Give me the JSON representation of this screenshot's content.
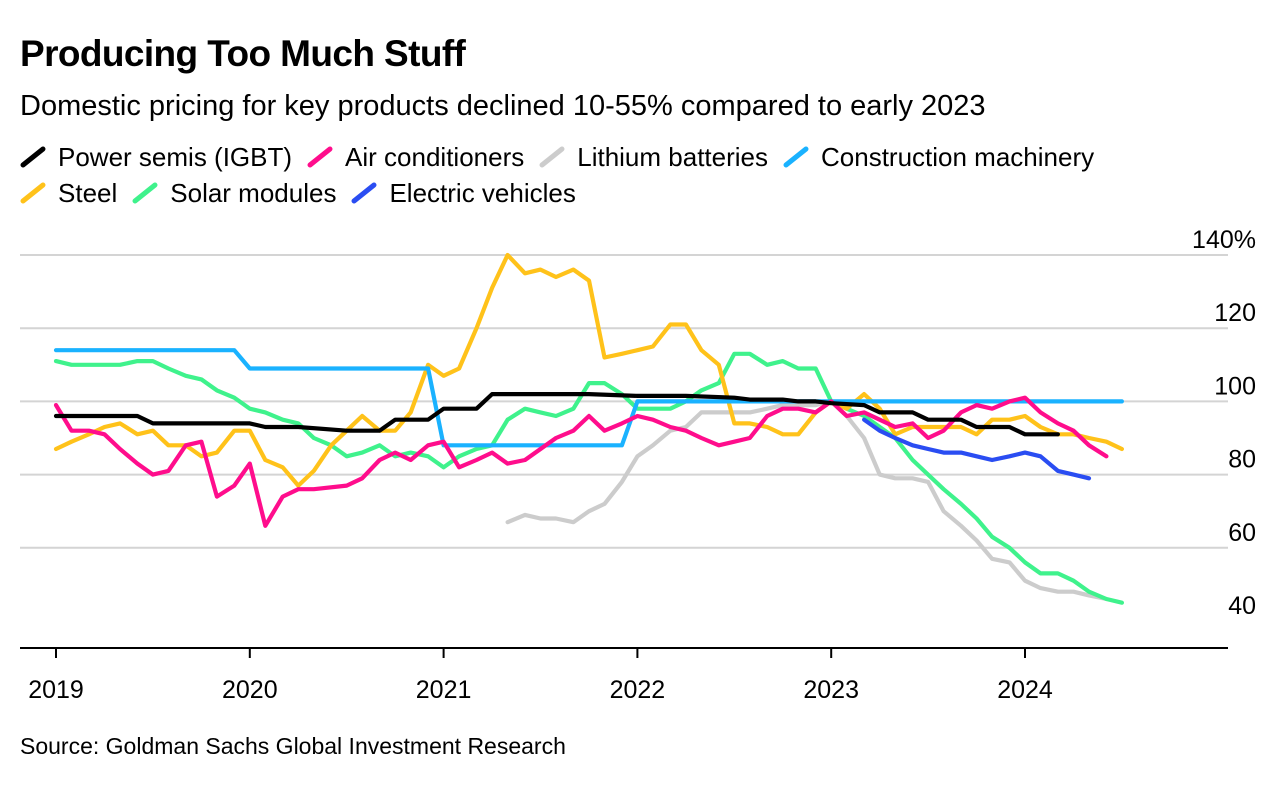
{
  "title": "Producing Too Much Stuff",
  "subtitle": "Domestic pricing for key products declined 10-55% compared to early 2023",
  "source": "Source: Goldman Sachs Global Investment Research",
  "chart_data": {
    "type": "line",
    "title": "Producing Too Much Stuff",
    "subtitle": "Domestic pricing for key products declined 10-55% compared to early 2023",
    "xlabel": "",
    "ylabel": "",
    "xlim": [
      2019,
      2025
    ],
    "ylim": [
      38,
      140
    ],
    "x_ticks": [
      2019,
      2020,
      2021,
      2022,
      2023,
      2024
    ],
    "x_tick_labels": [
      "2019",
      "2020",
      "2021",
      "2022",
      "2023",
      "2024"
    ],
    "y_ticks": [
      40,
      60,
      80,
      100,
      120,
      140
    ],
    "y_tick_labels": [
      "40",
      "60",
      "80",
      "100",
      "120",
      "140%"
    ],
    "grid": "horizontal",
    "legend": "top",
    "series": [
      {
        "name": "Power semis (IGBT)",
        "color": "#000000",
        "points": [
          [
            2019.0,
            96
          ],
          [
            2019.42,
            96
          ],
          [
            2019.5,
            94
          ],
          [
            2020.0,
            94
          ],
          [
            2020.08,
            93
          ],
          [
            2020.25,
            93
          ],
          [
            2020.5,
            92
          ],
          [
            2020.58,
            92
          ],
          [
            2020.67,
            92
          ],
          [
            2020.75,
            95
          ],
          [
            2020.92,
            95
          ],
          [
            2021.0,
            98
          ],
          [
            2021.17,
            98
          ],
          [
            2021.25,
            102
          ],
          [
            2021.75,
            102
          ],
          [
            2022.0,
            101.5
          ],
          [
            2022.25,
            101.5
          ],
          [
            2022.5,
            101
          ],
          [
            2022.58,
            100.5
          ],
          [
            2022.75,
            100.5
          ],
          [
            2022.83,
            100
          ],
          [
            2022.92,
            100
          ],
          [
            2023.0,
            99.5
          ],
          [
            2023.17,
            99
          ],
          [
            2023.25,
            97
          ],
          [
            2023.42,
            97
          ],
          [
            2023.5,
            95
          ],
          [
            2023.67,
            95
          ],
          [
            2023.75,
            93
          ],
          [
            2023.92,
            93
          ],
          [
            2024.0,
            91
          ],
          [
            2024.17,
            91
          ]
        ]
      },
      {
        "name": "Air conditioners",
        "color": "#ff0d8c",
        "points": [
          [
            2019.0,
            99
          ],
          [
            2019.08,
            92
          ],
          [
            2019.17,
            92
          ],
          [
            2019.25,
            91
          ],
          [
            2019.33,
            87
          ],
          [
            2019.42,
            83
          ],
          [
            2019.5,
            80
          ],
          [
            2019.58,
            81
          ],
          [
            2019.67,
            88
          ],
          [
            2019.75,
            89
          ],
          [
            2019.83,
            74
          ],
          [
            2019.92,
            77
          ],
          [
            2020.0,
            83
          ],
          [
            2020.08,
            66
          ],
          [
            2020.17,
            74
          ],
          [
            2020.25,
            76
          ],
          [
            2020.33,
            76
          ],
          [
            2020.5,
            77
          ],
          [
            2020.58,
            79
          ],
          [
            2020.67,
            84
          ],
          [
            2020.75,
            86
          ],
          [
            2020.83,
            84
          ],
          [
            2020.92,
            88
          ],
          [
            2021.0,
            89
          ],
          [
            2021.08,
            82
          ],
          [
            2021.17,
            84
          ],
          [
            2021.25,
            86
          ],
          [
            2021.33,
            83
          ],
          [
            2021.42,
            84
          ],
          [
            2021.5,
            87
          ],
          [
            2021.58,
            90
          ],
          [
            2021.67,
            92
          ],
          [
            2021.75,
            96
          ],
          [
            2021.83,
            92
          ],
          [
            2021.92,
            94
          ],
          [
            2022.0,
            96
          ],
          [
            2022.08,
            95
          ],
          [
            2022.17,
            93
          ],
          [
            2022.25,
            92
          ],
          [
            2022.33,
            90
          ],
          [
            2022.42,
            88
          ],
          [
            2022.5,
            89
          ],
          [
            2022.58,
            90
          ],
          [
            2022.67,
            96
          ],
          [
            2022.75,
            98
          ],
          [
            2022.83,
            98
          ],
          [
            2022.92,
            97
          ],
          [
            2023.0,
            100
          ],
          [
            2023.08,
            96
          ],
          [
            2023.17,
            97
          ],
          [
            2023.25,
            95
          ],
          [
            2023.33,
            93
          ],
          [
            2023.42,
            94
          ],
          [
            2023.5,
            90
          ],
          [
            2023.58,
            92
          ],
          [
            2023.67,
            97
          ],
          [
            2023.75,
            99
          ],
          [
            2023.83,
            98
          ],
          [
            2023.92,
            100
          ],
          [
            2024.0,
            101
          ],
          [
            2024.08,
            97
          ],
          [
            2024.17,
            94
          ],
          [
            2024.25,
            92
          ],
          [
            2024.33,
            88
          ],
          [
            2024.42,
            85
          ]
        ]
      },
      {
        "name": "Lithium batteries",
        "color": "#cccccc",
        "points": [
          [
            2021.33,
            67
          ],
          [
            2021.42,
            69
          ],
          [
            2021.5,
            68
          ],
          [
            2021.58,
            68
          ],
          [
            2021.67,
            67
          ],
          [
            2021.75,
            70
          ],
          [
            2021.83,
            72
          ],
          [
            2021.92,
            78
          ],
          [
            2022.0,
            85
          ],
          [
            2022.08,
            88
          ],
          [
            2022.17,
            92
          ],
          [
            2022.25,
            93
          ],
          [
            2022.33,
            97
          ],
          [
            2022.42,
            97
          ],
          [
            2022.5,
            97
          ],
          [
            2022.58,
            97
          ],
          [
            2022.67,
            98
          ],
          [
            2022.75,
            99
          ],
          [
            2022.83,
            99
          ],
          [
            2022.92,
            99
          ],
          [
            2023.0,
            100
          ],
          [
            2023.08,
            96
          ],
          [
            2023.17,
            90
          ],
          [
            2023.25,
            80
          ],
          [
            2023.33,
            79
          ],
          [
            2023.42,
            79
          ],
          [
            2023.5,
            78
          ],
          [
            2023.58,
            70
          ],
          [
            2023.67,
            66
          ],
          [
            2023.75,
            62
          ],
          [
            2023.83,
            57
          ],
          [
            2023.92,
            56
          ],
          [
            2024.0,
            51
          ],
          [
            2024.08,
            49
          ],
          [
            2024.17,
            48
          ],
          [
            2024.25,
            48
          ],
          [
            2024.33,
            47
          ],
          [
            2024.42,
            46
          ]
        ]
      },
      {
        "name": "Construction machinery",
        "color": "#1ab2ff",
        "points": [
          [
            2019.0,
            114
          ],
          [
            2019.92,
            114
          ],
          [
            2020.0,
            109
          ],
          [
            2020.92,
            109
          ],
          [
            2021.0,
            88
          ],
          [
            2021.92,
            88
          ],
          [
            2022.0,
            100
          ],
          [
            2024.5,
            100
          ]
        ]
      },
      {
        "name": "Steel",
        "color": "#ffc21a",
        "points": [
          [
            2019.0,
            87
          ],
          [
            2019.08,
            89
          ],
          [
            2019.17,
            91
          ],
          [
            2019.25,
            93
          ],
          [
            2019.33,
            94
          ],
          [
            2019.42,
            91
          ],
          [
            2019.5,
            92
          ],
          [
            2019.58,
            88
          ],
          [
            2019.67,
            88
          ],
          [
            2019.75,
            85
          ],
          [
            2019.83,
            86
          ],
          [
            2019.92,
            92
          ],
          [
            2020.0,
            92
          ],
          [
            2020.08,
            84
          ],
          [
            2020.17,
            82
          ],
          [
            2020.25,
            77
          ],
          [
            2020.33,
            81
          ],
          [
            2020.42,
            88
          ],
          [
            2020.5,
            92
          ],
          [
            2020.58,
            96
          ],
          [
            2020.67,
            92
          ],
          [
            2020.75,
            92
          ],
          [
            2020.83,
            97
          ],
          [
            2020.92,
            110
          ],
          [
            2021.0,
            107
          ],
          [
            2021.08,
            109
          ],
          [
            2021.17,
            120
          ],
          [
            2021.25,
            131
          ],
          [
            2021.33,
            140
          ],
          [
            2021.42,
            135
          ],
          [
            2021.5,
            136
          ],
          [
            2021.58,
            134
          ],
          [
            2021.67,
            136
          ],
          [
            2021.75,
            133
          ],
          [
            2021.83,
            112
          ],
          [
            2021.92,
            113
          ],
          [
            2022.0,
            114
          ],
          [
            2022.08,
            115
          ],
          [
            2022.17,
            121
          ],
          [
            2022.25,
            121
          ],
          [
            2022.33,
            114
          ],
          [
            2022.42,
            110
          ],
          [
            2022.5,
            94
          ],
          [
            2022.58,
            94
          ],
          [
            2022.67,
            93
          ],
          [
            2022.75,
            91
          ],
          [
            2022.83,
            91
          ],
          [
            2022.92,
            97
          ],
          [
            2023.0,
            100
          ],
          [
            2023.08,
            98
          ],
          [
            2023.17,
            102
          ],
          [
            2023.25,
            98
          ],
          [
            2023.33,
            91
          ],
          [
            2023.42,
            93
          ],
          [
            2023.5,
            93
          ],
          [
            2023.58,
            93
          ],
          [
            2023.67,
            93
          ],
          [
            2023.75,
            91
          ],
          [
            2023.83,
            95
          ],
          [
            2023.92,
            95
          ],
          [
            2024.0,
            96
          ],
          [
            2024.08,
            93
          ],
          [
            2024.17,
            91
          ],
          [
            2024.25,
            91
          ],
          [
            2024.33,
            90
          ],
          [
            2024.42,
            89
          ],
          [
            2024.5,
            87
          ]
        ]
      },
      {
        "name": "Solar modules",
        "color": "#3ff28c",
        "points": [
          [
            2019.0,
            111
          ],
          [
            2019.08,
            110
          ],
          [
            2019.17,
            110
          ],
          [
            2019.25,
            110
          ],
          [
            2019.33,
            110
          ],
          [
            2019.42,
            111
          ],
          [
            2019.5,
            111
          ],
          [
            2019.58,
            109
          ],
          [
            2019.67,
            107
          ],
          [
            2019.75,
            106
          ],
          [
            2019.83,
            103
          ],
          [
            2019.92,
            101
          ],
          [
            2020.0,
            98
          ],
          [
            2020.08,
            97
          ],
          [
            2020.17,
            95
          ],
          [
            2020.25,
            94
          ],
          [
            2020.33,
            90
          ],
          [
            2020.42,
            88
          ],
          [
            2020.5,
            85
          ],
          [
            2020.58,
            86
          ],
          [
            2020.67,
            88
          ],
          [
            2020.75,
            85
          ],
          [
            2020.83,
            86
          ],
          [
            2020.92,
            85
          ],
          [
            2021.0,
            82
          ],
          [
            2021.08,
            85
          ],
          [
            2021.17,
            87
          ],
          [
            2021.25,
            88
          ],
          [
            2021.33,
            95
          ],
          [
            2021.42,
            98
          ],
          [
            2021.5,
            97
          ],
          [
            2021.58,
            96
          ],
          [
            2021.67,
            98
          ],
          [
            2021.75,
            105
          ],
          [
            2021.83,
            105
          ],
          [
            2021.92,
            102
          ],
          [
            2022.0,
            98
          ],
          [
            2022.08,
            98
          ],
          [
            2022.17,
            98
          ],
          [
            2022.25,
            100
          ],
          [
            2022.33,
            103
          ],
          [
            2022.42,
            105
          ],
          [
            2022.5,
            113
          ],
          [
            2022.58,
            113
          ],
          [
            2022.67,
            110
          ],
          [
            2022.75,
            111
          ],
          [
            2022.83,
            109
          ],
          [
            2022.92,
            109
          ],
          [
            2023.0,
            100
          ],
          [
            2023.08,
            98
          ],
          [
            2023.17,
            96
          ],
          [
            2023.25,
            93
          ],
          [
            2023.33,
            90
          ],
          [
            2023.42,
            84
          ],
          [
            2023.5,
            80
          ],
          [
            2023.58,
            76
          ],
          [
            2023.67,
            72
          ],
          [
            2023.75,
            68
          ],
          [
            2023.83,
            63
          ],
          [
            2023.92,
            60
          ],
          [
            2024.0,
            56
          ],
          [
            2024.08,
            53
          ],
          [
            2024.17,
            53
          ],
          [
            2024.25,
            51
          ],
          [
            2024.33,
            48
          ],
          [
            2024.42,
            46
          ],
          [
            2024.5,
            45
          ]
        ]
      },
      {
        "name": "Electric vehicles",
        "color": "#2a4df2",
        "points": [
          [
            2023.17,
            95
          ],
          [
            2023.25,
            92
          ],
          [
            2023.33,
            90
          ],
          [
            2023.42,
            88
          ],
          [
            2023.5,
            87
          ],
          [
            2023.58,
            86
          ],
          [
            2023.67,
            86
          ],
          [
            2023.75,
            85
          ],
          [
            2023.83,
            84
          ],
          [
            2023.92,
            85
          ],
          [
            2024.0,
            86
          ],
          [
            2024.08,
            85
          ],
          [
            2024.17,
            81
          ],
          [
            2024.25,
            80
          ],
          [
            2024.33,
            79
          ]
        ]
      }
    ]
  }
}
